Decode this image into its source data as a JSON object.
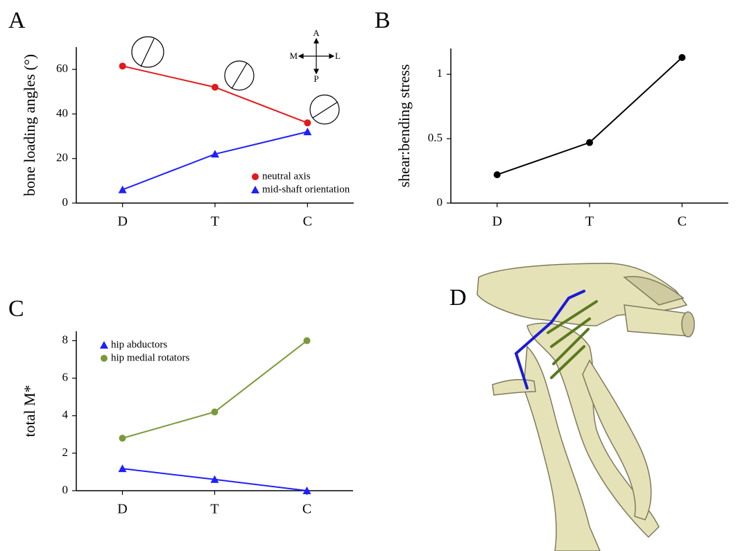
{
  "chart_data": [
    {
      "type": "line",
      "panel": "A",
      "ylabel": "bone loading angles (°)",
      "categories": [
        "D",
        "T",
        "C"
      ],
      "series": [
        {
          "name": "neutral axis",
          "color": "#e31a1c",
          "marker": "circle",
          "values": [
            61.5,
            52,
            36
          ]
        },
        {
          "name": "mid-shaft orientation",
          "color": "#1f1fff",
          "marker": "triangle",
          "values": [
            6,
            22,
            32
          ]
        }
      ],
      "ylim": [
        0,
        70
      ],
      "yticks": [
        0,
        20,
        40,
        60
      ],
      "legend": "lower right",
      "compass": {
        "up": "A",
        "down": "P",
        "left": "M",
        "right": "L"
      }
    },
    {
      "type": "line",
      "panel": "B",
      "ylabel": "shear:bending stress",
      "categories": [
        "D",
        "T",
        "C"
      ],
      "series": [
        {
          "color": "#000000",
          "marker": "circle",
          "values": [
            0.22,
            0.47,
            1.13
          ]
        }
      ],
      "ylim": [
        0,
        1.2
      ],
      "yticks": [
        0,
        0.5,
        1
      ]
    },
    {
      "type": "line",
      "panel": "C",
      "ylabel": "total M*",
      "categories": [
        "D",
        "T",
        "C"
      ],
      "series": [
        {
          "name": "hip abductors",
          "color": "#1f1fff",
          "marker": "triangle",
          "values": [
            1.18,
            0.6,
            0
          ]
        },
        {
          "name": "hip medial rotators",
          "color": "#7a9a3a",
          "marker": "circle",
          "values": [
            2.8,
            4.2,
            8
          ]
        }
      ],
      "ylim": [
        0,
        8.5
      ],
      "yticks": [
        0,
        2,
        4,
        6,
        8
      ],
      "legend": "upper left"
    }
  ],
  "illustration": {
    "panel": "D"
  }
}
